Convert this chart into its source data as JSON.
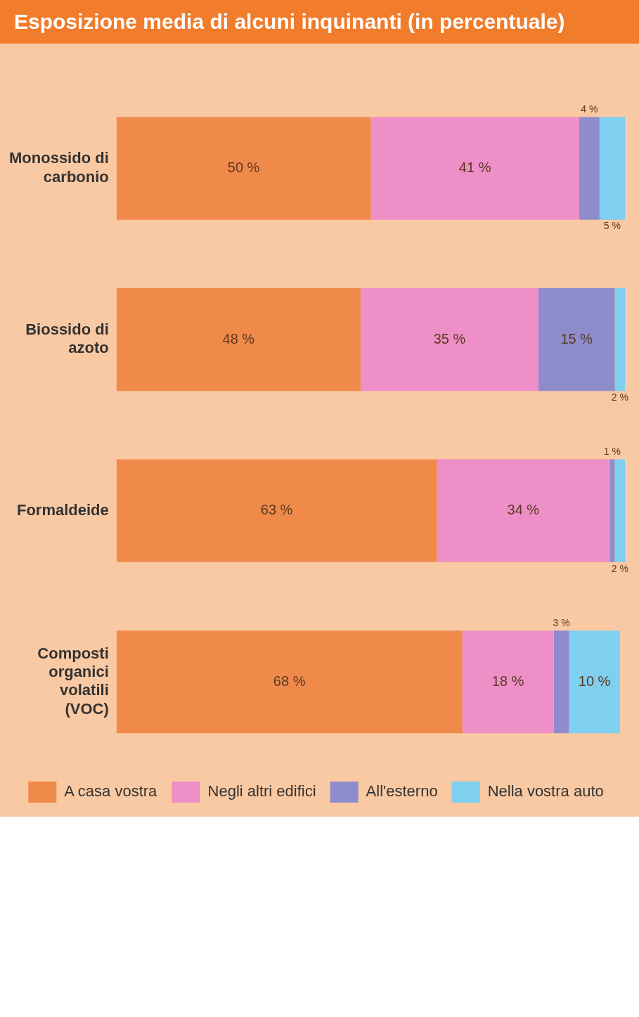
{
  "chart_data": {
    "type": "bar",
    "orientation": "horizontal",
    "stacked": true,
    "title": "Esposizione media di alcuni inquinanti (in percentuale)",
    "categories": [
      "Monossido di carbonio",
      "Biossido di azoto",
      "Formaldeide",
      "Composti organici volatili (VOC)"
    ],
    "series": [
      {
        "name": "A casa vostra",
        "color": "#f08a4b",
        "values": [
          50,
          48,
          63,
          68
        ],
        "value_labels": [
          "50 %",
          "48 %",
          "63 %",
          "68 %"
        ]
      },
      {
        "name": "Negli altri edifici",
        "color": "#ee8fc8",
        "values": [
          41,
          35,
          34,
          18
        ],
        "value_labels": [
          "41 %",
          "35 %",
          "34 %",
          "18 %"
        ]
      },
      {
        "name": "All'esterno",
        "color": "#8e8ccc",
        "values": [
          4,
          15,
          1,
          3
        ],
        "value_labels": [
          "4 %",
          "15 %",
          "1 %",
          "3 %"
        ]
      },
      {
        "name": "Nella vostra auto",
        "color": "#7fcfee",
        "values": [
          5,
          2,
          2,
          10
        ],
        "value_labels": [
          "5 %",
          "2 %",
          "2 %",
          "10 %"
        ]
      }
    ],
    "legend": "bottom",
    "grid": false
  }
}
